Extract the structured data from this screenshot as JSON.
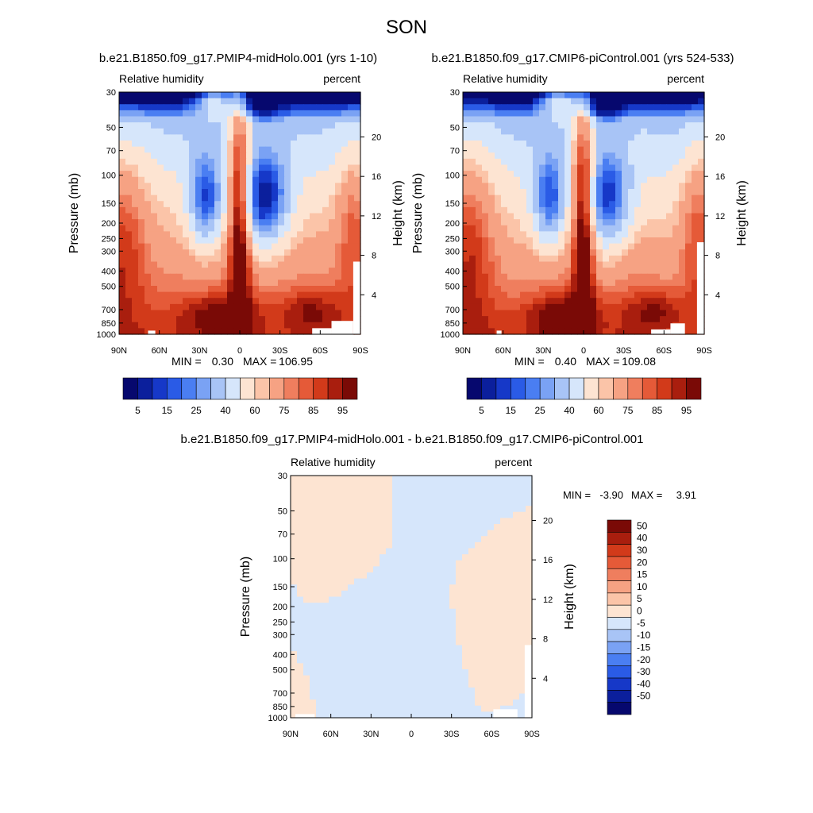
{
  "figure": {
    "season": "SON",
    "diff_title": "b.e21.B1850.f09_g17.PMIP4-midHolo.001 - b.e21.B1850.f09_g17.CMIP6-piControl.001"
  },
  "chart_data": [
    {
      "type": "heatmap",
      "id": "panel-midholo",
      "title": "b.e21.B1850.f09_g17.PMIP4-midHolo.001 (yrs 1-10)",
      "left_subtitle": "Relative humidity",
      "right_subtitle": "percent",
      "ylabel": "Pressure (mb)",
      "ylabel_right": "Height (km)",
      "x_ticks": [
        "90N",
        "60N",
        "30N",
        "0",
        "30S",
        "60S",
        "90S"
      ],
      "p_ticks": [
        30,
        50,
        70,
        100,
        150,
        200,
        250,
        300,
        400,
        500,
        700,
        850,
        1000
      ],
      "height_ticks": [
        20,
        16,
        12,
        8,
        4
      ],
      "ylim": [
        1000,
        30
      ],
      "xlim": [
        90,
        -90
      ],
      "stats": {
        "min_label": "MIN =",
        "min": "0.30",
        "max_label": "MAX =",
        "max": "106.95"
      },
      "field_variant": 0,
      "colorbar": {
        "orientation": "horizontal",
        "labels": [
          "5",
          "15",
          "25",
          "40",
          "60",
          "75",
          "85",
          "95"
        ],
        "levels": [
          5,
          10,
          15,
          20,
          25,
          30,
          40,
          50,
          60,
          65,
          75,
          80,
          85,
          90,
          95
        ]
      }
    },
    {
      "type": "heatmap",
      "id": "panel-picontrol",
      "title": "b.e21.B1850.f09_g17.CMIP6-piControl.001 (yrs 524-533)",
      "left_subtitle": "Relative humidity",
      "right_subtitle": "percent",
      "ylabel": "Pressure (mb)",
      "ylabel_right": "Height (km)",
      "x_ticks": [
        "90N",
        "60N",
        "30N",
        "0",
        "30S",
        "60S",
        "90S"
      ],
      "p_ticks": [
        30,
        50,
        70,
        100,
        150,
        200,
        250,
        300,
        400,
        500,
        700,
        850,
        1000
      ],
      "height_ticks": [
        20,
        16,
        12,
        8,
        4
      ],
      "ylim": [
        1000,
        30
      ],
      "xlim": [
        90,
        -90
      ],
      "stats": {
        "min_label": "MIN =",
        "min": "0.40",
        "max_label": "MAX =",
        "max": "109.08"
      },
      "field_variant": 1,
      "colorbar": {
        "orientation": "horizontal",
        "labels": [
          "5",
          "15",
          "25",
          "40",
          "60",
          "75",
          "85",
          "95"
        ],
        "levels": [
          5,
          10,
          15,
          20,
          25,
          30,
          40,
          50,
          60,
          65,
          75,
          80,
          85,
          90,
          95
        ]
      }
    },
    {
      "type": "heatmap",
      "id": "panel-diff",
      "left_subtitle": "Relative humidity",
      "right_subtitle": "percent",
      "ylabel": "Pressure (mb)",
      "ylabel_right": "Height (km)",
      "x_ticks": [
        "90N",
        "60N",
        "30N",
        "0",
        "30S",
        "60S",
        "90S"
      ],
      "p_ticks": [
        30,
        50,
        70,
        100,
        150,
        200,
        250,
        300,
        400,
        500,
        700,
        850,
        1000
      ],
      "height_ticks": [
        20,
        16,
        12,
        8,
        4
      ],
      "ylim": [
        1000,
        30
      ],
      "xlim": [
        90,
        -90
      ],
      "stats": {
        "min_label": "MIN =",
        "min": "-3.90",
        "max_label": "MAX =",
        "max": "3.91"
      },
      "colorbar": {
        "orientation": "vertical",
        "labels": [
          "50",
          "40",
          "30",
          "20",
          "15",
          "10",
          "5",
          "0",
          "-5",
          "-10",
          "-15",
          "-20",
          "-30",
          "-40",
          "-50"
        ]
      }
    }
  ],
  "colors": {
    "rh_palette": [
      "#06086e",
      "#0b1f9c",
      "#1638c8",
      "#2a5be6",
      "#4a7ef2",
      "#7aa2f4",
      "#a8c4f6",
      "#d6e6fb",
      "#fde4d2",
      "#fbc4a8",
      "#f6a283",
      "#ef7e5e",
      "#e55a38",
      "#d23a1a",
      "#a91e0e",
      "#7a0a06"
    ],
    "diff_palette": [
      "#7a0a06",
      "#a91e0e",
      "#d23a1a",
      "#e55a38",
      "#ef7e5e",
      "#f6a283",
      "#fbc4a8",
      "#fde4d2",
      "#d6e6fb",
      "#a8c4f6",
      "#7aa2f4",
      "#4a7ef2",
      "#2a5be6",
      "#1638c8",
      "#0b1f9c",
      "#06086e"
    ],
    "missing": "#ffffff"
  }
}
